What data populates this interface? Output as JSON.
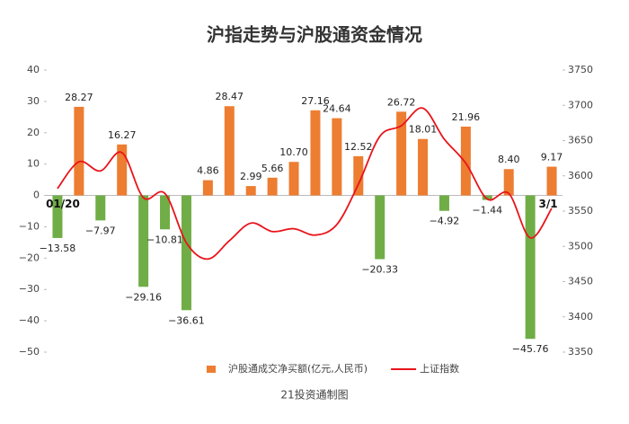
{
  "chart_data": {
    "type": "bar_line",
    "title": "沪指走势与沪股通资金情况",
    "caption": "21投资通制图",
    "categories": [
      "01/20",
      null,
      null,
      null,
      null,
      null,
      null,
      null,
      null,
      null,
      null,
      null,
      null,
      null,
      null,
      null,
      null,
      null,
      null,
      null,
      null,
      null,
      null,
      "3/1"
    ],
    "series": [
      {
        "name": "沪股通成交净买额(亿元,人民币)",
        "color": "#ed7d31",
        "negative_color": "#70ad47",
        "values": [
          -13.58,
          28.27,
          -7.97,
          16.27,
          -29.16,
          -10.81,
          -36.61,
          4.86,
          28.47,
          2.99,
          5.66,
          10.7,
          27.16,
          24.64,
          12.52,
          -20.33,
          26.72,
          18.01,
          -4.92,
          21.96,
          -1.44,
          8.4,
          -45.76,
          9.17
        ],
        "value_labels": [
          "−13.58",
          "28.27",
          "−7.97",
          "16.27",
          "−29.16",
          "−10.81",
          "−36.61",
          "4.86",
          "28.47",
          "2.99",
          "5.66",
          "10.70",
          "27.16",
          "24.64",
          "12.52",
          "−20.33",
          "26.72",
          "18.01",
          "−4.92",
          "21.96",
          "−1.44",
          "8.40",
          "−45.76",
          "9.17"
        ]
      },
      {
        "name": "上证指数",
        "color": "#e8141b",
        "axis": "y2",
        "values": [
          3582,
          3620,
          3607,
          3633,
          3569,
          3575,
          3505,
          3482,
          3508,
          3533,
          3521,
          3525,
          3516,
          3531,
          3588,
          3656,
          3671,
          3696,
          3652,
          3618,
          3567,
          3575,
          3512,
          3554
        ]
      }
    ],
    "ylim": [
      -50,
      40
    ],
    "yticks": [
      {
        "value": -50,
        "label": "−50"
      },
      {
        "value": -40,
        "label": "−40"
      },
      {
        "value": -30,
        "label": "−30"
      },
      {
        "value": -20,
        "label": "−20"
      },
      {
        "value": -10,
        "label": "−10"
      },
      0,
      10,
      20,
      30,
      40
    ],
    "y2lim": [
      3350,
      3750
    ],
    "y2ticks": [
      3350,
      3400,
      3450,
      3500,
      3550,
      3600,
      3650,
      3700,
      3750
    ],
    "grid": false,
    "legend": "bottom"
  }
}
